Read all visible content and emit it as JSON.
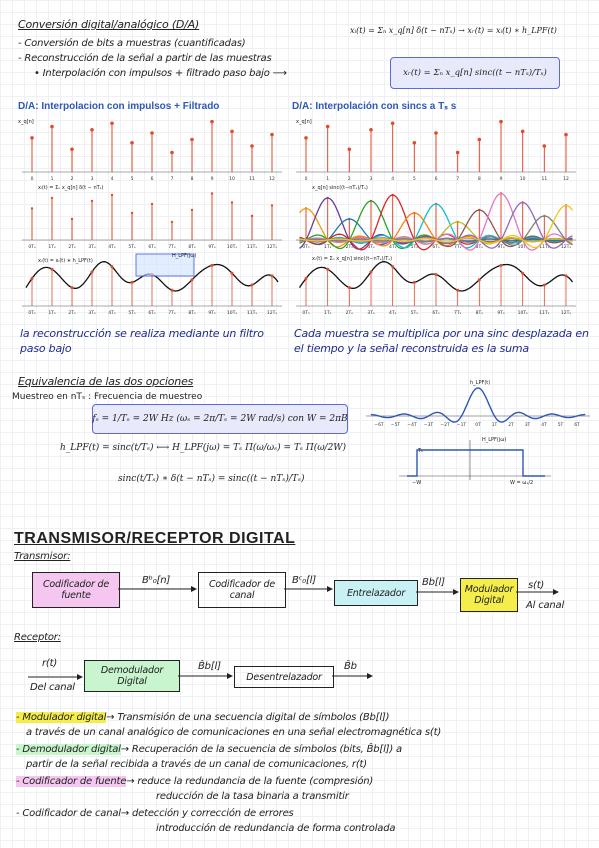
{
  "section1": {
    "title": "Conversión digital/analógico (D/A)",
    "bullets": [
      "- Conversión de bits a muestras (cuantificadas)",
      "- Reconstrucción de la señal a partir de las muestras",
      "• Interpolación con impulsos + filtrado paso bajo ⟶"
    ],
    "formula_top": "xᵢ(t) = Σₙ x_q[n] δ(t − nTₛ) → xᵣ(t) = xᵢ(t) ∗ h_LPF(t)",
    "formula_box": "xᵣ(t) = Σₙ x_q[n] sinc((t − nTₛ)/Tₛ)"
  },
  "panel_left": {
    "title": "D/A: Interpolacion con impulsos + Filtrado",
    "plot1_label": "x_q[n]",
    "plot2_label": "xᵢ(t) = Σₙ x_q[n] δ(t − nTₛ)",
    "plot3_label": "xᵣ(t) = xᵢ(t) ∗ h_LPF(t)",
    "filter_label": "H_LPF(jω)",
    "ticks_n": [
      "0",
      "1",
      "2",
      "3",
      "4",
      "5",
      "6",
      "7",
      "8",
      "9",
      "10",
      "11",
      "12"
    ],
    "ticks_t": [
      "0Tₛ",
      "1Tₛ",
      "2Tₛ",
      "3Tₛ",
      "4Tₛ",
      "5Tₛ",
      "6Tₛ",
      "7Tₛ",
      "8Tₛ",
      "9Tₛ",
      "10Tₛ",
      "11Tₛ",
      "12Tₛ"
    ],
    "note": "la reconstrucción se realiza mediante un filtro paso bajo"
  },
  "panel_right": {
    "title": "D/A: Interpolación con sincs a Tₛ s",
    "plot1_label": "x_q[n]",
    "plot2_label": "x_q[n] sinc((t−nTₛ)/Tₛ)",
    "plot3_label": "xᵣ(t) = Σₙ x_q[n] sinc((t−nTₛ)/Tₛ)",
    "note": "Cada muestra se multiplica por una sinc desplazada en el tiempo y la señal reconstruida es la suma"
  },
  "section2": {
    "title": "Equivalencia de las dos opciones",
    "subtitle": "Muestreo en nTₛ : Frecuencia de muestreo",
    "formula_box": "fₛ = 1/Tₛ = 2W Hz  (ωₛ = 2π/Tₛ = 2W rad/s)  con W = 2πB",
    "formula_2": "h_LPF(t) = sinc(t/Tₛ)  ⟷  H_LPF(jω) = Tₛ Π(ω/ωₛ) = Tₛ Π(ω/2W)",
    "formula_3": "sinc(t/Tₛ) ∗ δ(t − nTₛ) = sinc((t − nTₛ)/Tₛ)",
    "graph_label": "h_LPF(t)",
    "graph2_label": "H_LPF(jω)",
    "graph2_height": "Tₛ",
    "graph2_left": "−W",
    "graph2_right": "W = ωₛ/2",
    "ticks": [
      "−6T",
      "−5T",
      "−4T",
      "−3T",
      "−2T",
      "−1T",
      "0T",
      "1T",
      "2T",
      "3T",
      "4T",
      "5T",
      "6T"
    ]
  },
  "section3": {
    "title": "TRANSMISOR/RECEPTOR DIGITAL",
    "tx_label": "Transmisor:",
    "tx_blocks": [
      "Codificador de fuente",
      "Codificador de canal",
      "Entrelazador",
      "Modulador Digital"
    ],
    "tx_signals": [
      "Bᵇ₀[n]",
      "Bᶜ₀[l]",
      "Bb[l]",
      "s(t)"
    ],
    "tx_output": "Al canal",
    "rx_label": "Receptor:",
    "rx_input": "r(t)",
    "rx_input2": "Del canal",
    "rx_blocks": [
      "Demodulador Digital",
      "Desentrelazador"
    ],
    "rx_signals": [
      "B̂b[l]",
      "B̂b"
    ],
    "defs": [
      {
        "term": "- Modulador digital",
        "rest": "→ Transmisión de una secuencia digital de símbolos (Bb[l])"
      },
      {
        "term": "",
        "rest": "a través de un canal analógico de comunicaciones en una señal electromagnética s(t)"
      },
      {
        "term": "- Demodulador digital",
        "rest": "→ Recuperación de la secuencia de símbolos (bits, B̂b[l]) a"
      },
      {
        "term": "",
        "rest": "partir de la señal recibida a través de un canal de comunicaciones, r(t)"
      },
      {
        "term": "- Codificador de fuente",
        "rest": "→ reduce la redundancia de la fuente (compresión)"
      },
      {
        "term": "",
        "rest": "reducción de la tasa binaria a transmitir"
      },
      {
        "term": "- Codificador de canal",
        "rest": "→ detección y corrección de errores"
      },
      {
        "term": "",
        "rest": "introducción de redundancia de forma controlada"
      }
    ]
  },
  "colors": {
    "stem": "#e04b2a",
    "highlight_yellow": "#f5ee4a",
    "box_pink": "#f4c6f0",
    "box_green": "#c8f5cd",
    "box_cyan": "#c8f1f5",
    "ink_blue": "#1f2c8a"
  },
  "chart_data": {
    "type": "scatter",
    "samples": [
      2.1,
      2.8,
      1.4,
      2.6,
      3.0,
      1.8,
      2.4,
      1.2,
      2.0,
      3.1,
      2.5,
      1.6,
      2.3
    ]
  }
}
